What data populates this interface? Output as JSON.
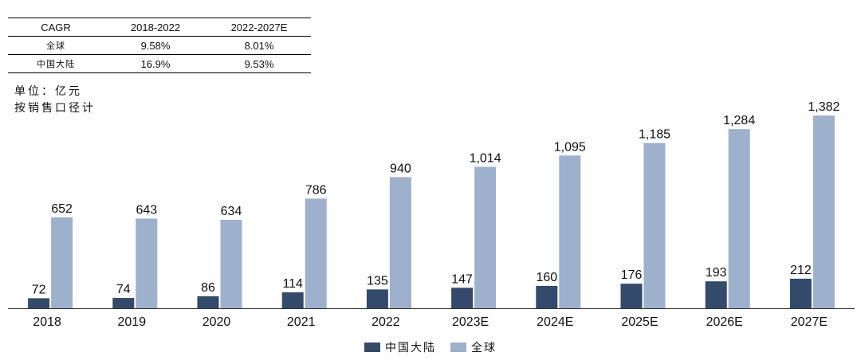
{
  "cagr_table": {
    "headers": [
      "CAGR",
      "2018-2022",
      "2022-2027E"
    ],
    "rows": [
      {
        "label": "全球",
        "v1": "9.58%",
        "v2": "8.01%"
      },
      {
        "label": "中国大陆",
        "v1": "16.9%",
        "v2": "9.53%"
      }
    ]
  },
  "unit_note": {
    "line1": "单位：亿元",
    "line2": "按销售口径计"
  },
  "chart_data": {
    "type": "bar",
    "categories": [
      "2018",
      "2019",
      "2020",
      "2021",
      "2022",
      "2023E",
      "2024E",
      "2025E",
      "2026E",
      "2027E"
    ],
    "series": [
      {
        "name": "中国大陆",
        "color": "#344a6a",
        "values": [
          72,
          74,
          86,
          114,
          135,
          147,
          160,
          176,
          193,
          212
        ],
        "labels": [
          "72",
          "74",
          "86",
          "114",
          "135",
          "147",
          "160",
          "176",
          "193",
          "212"
        ]
      },
      {
        "name": "全球",
        "color": "#9db0cc",
        "values": [
          652,
          643,
          634,
          786,
          940,
          1014,
          1095,
          1185,
          1284,
          1382
        ],
        "labels": [
          "652",
          "643",
          "634",
          "786",
          "940",
          "1,014",
          "1,095",
          "1,185",
          "1,284",
          "1,382"
        ]
      }
    ],
    "ylim": [
      0,
      1400
    ],
    "grid": false,
    "legend_position": "bottom"
  }
}
